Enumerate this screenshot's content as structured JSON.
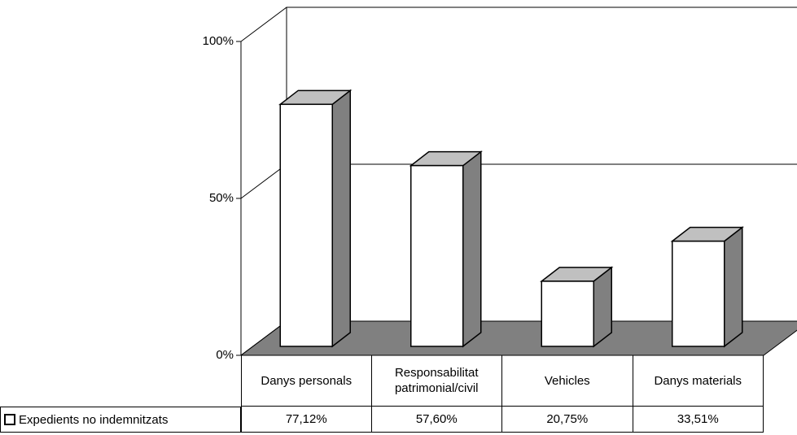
{
  "chart_data": {
    "type": "bar3d",
    "categories": [
      "Danys personals",
      "Responsabilitat patrimonial/civil",
      "Vehicles",
      "Danys materials"
    ],
    "series": [
      {
        "name": "Expedients no indemnitzats",
        "color": "#ffffff",
        "values": [
          77.12,
          57.6,
          20.75,
          33.51
        ],
        "value_labels": [
          "77,12%",
          "57,60%",
          "20,75%",
          "33,51%"
        ]
      }
    ],
    "ylim": [
      0,
      100
    ],
    "yticks": [
      {
        "value": 0,
        "label": "0%"
      },
      {
        "value": 50,
        "label": "50%"
      },
      {
        "value": 100,
        "label": "100%"
      }
    ],
    "grid": true
  }
}
